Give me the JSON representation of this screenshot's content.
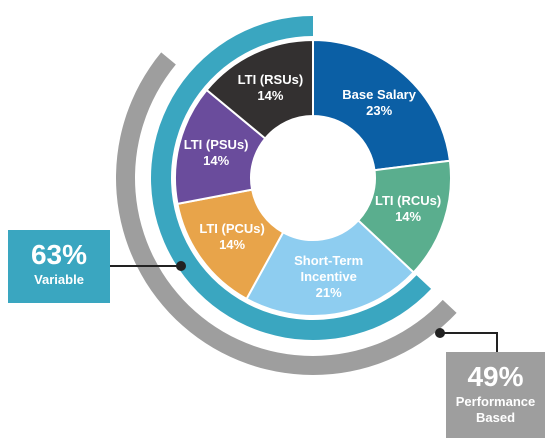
{
  "chart_data": {
    "type": "donut",
    "categories": [
      "Base Salary",
      "LTI (RCUs)",
      "Short-Term Incentive",
      "LTI (PCUs)",
      "LTI (PSUs)",
      "LTI (RSUs)"
    ],
    "values": [
      23,
      14,
      21,
      14,
      14,
      14
    ],
    "value_labels": [
      "23%",
      "14%",
      "21%",
      "14%",
      "14%",
      "14%"
    ],
    "colors": [
      "#0b5fa5",
      "#5aae8e",
      "#8ecdf0",
      "#e8a44a",
      "#6a4c9c",
      "#333030"
    ],
    "groups": [
      {
        "name": "Variable",
        "value": 63,
        "label": "63%",
        "color": "#3aa6c0"
      },
      {
        "name": "Performance Based",
        "value": 49,
        "label": "49%",
        "color": "#9e9e9e"
      }
    ]
  }
}
